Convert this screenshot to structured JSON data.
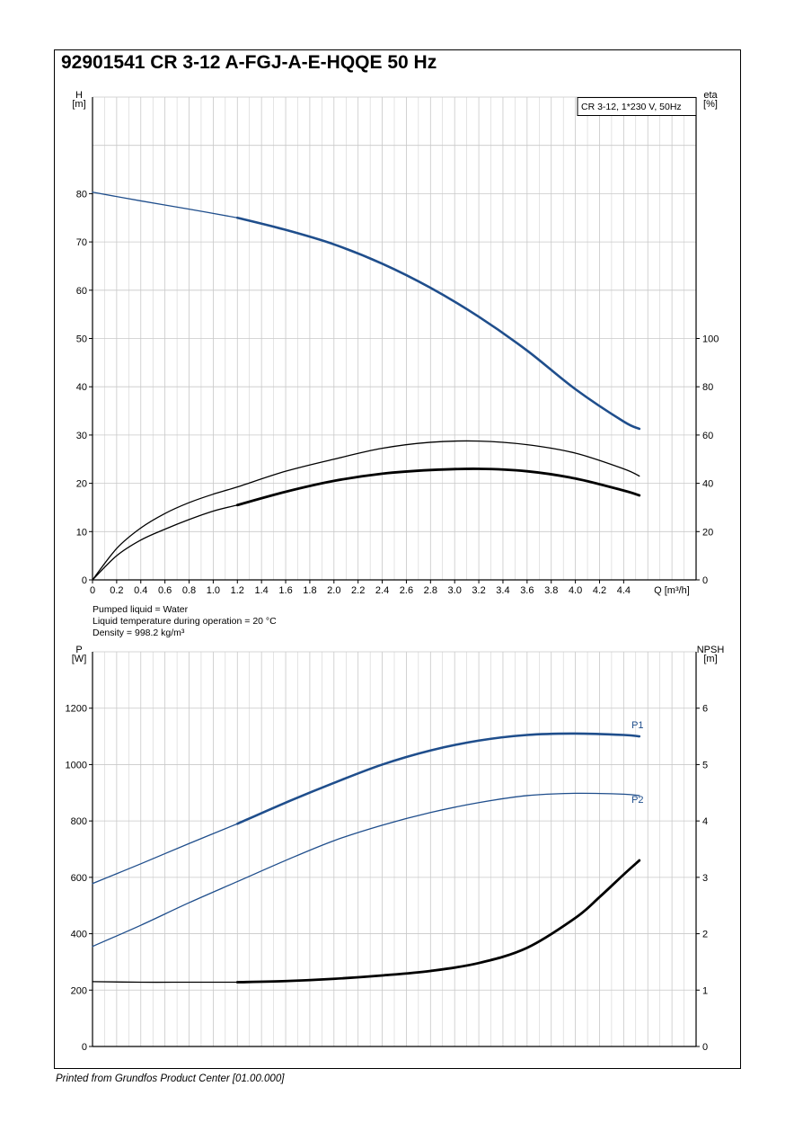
{
  "title": "92901541 CR 3-12 A-FGJ-A-E-HQQE 50 Hz",
  "footer": "Printed from Grundfos Product Center [01.00.000]",
  "colors": {
    "blue": "#1f4e8c",
    "black": "#000000",
    "grid": "#c8c8c8"
  },
  "chart_data": [
    {
      "type": "line",
      "legend_box": "CR 3-12, 1*230 V, 50Hz",
      "x_label": "Q [m³/h]",
      "x_ticks": [
        "0",
        "0.2",
        "0.4",
        "0.6",
        "0.8",
        "1.0",
        "1.2",
        "1.4",
        "1.6",
        "1.8",
        "2.0",
        "2.2",
        "2.4",
        "2.6",
        "2.8",
        "3.0",
        "3.2",
        "3.4",
        "3.6",
        "3.8",
        "4.0",
        "4.2",
        "4.4"
      ],
      "xlim": [
        0,
        5.0
      ],
      "y_label_top": "H",
      "y_label_bottom": "[m]",
      "y_ticks": [
        "0",
        "10",
        "20",
        "30",
        "40",
        "50",
        "60",
        "70",
        "80"
      ],
      "ylim": [
        0,
        100
      ],
      "y2_label_top": "eta",
      "y2_label_bottom": "[%]",
      "y2_ticks": [
        "0",
        "20",
        "40",
        "60",
        "80",
        "100"
      ],
      "y2lim": [
        0,
        200
      ],
      "notes": [
        "Pumped liquid = Water",
        "Liquid temperature during operation = 20 °C",
        "Density = 998.2 kg/m³"
      ],
      "series": [
        {
          "axis": "y",
          "style": "blue",
          "x": [
            0,
            0.4,
            0.8,
            1.2,
            1.6,
            2.0,
            2.4,
            2.8,
            3.2,
            3.6,
            4.0,
            4.4,
            4.53
          ],
          "y": [
            80.3,
            78.5,
            76.8,
            75.0,
            72.5,
            69.5,
            65.5,
            60.5,
            54.5,
            47.5,
            39.5,
            32.8,
            31.3
          ]
        },
        {
          "axis": "y2",
          "style": "black-thin",
          "x": [
            0,
            0.2,
            0.4,
            0.6,
            0.8,
            1.0,
            1.2,
            1.6,
            2.0,
            2.4,
            2.8,
            3.2,
            3.6,
            4.0,
            4.4,
            4.53
          ],
          "y": [
            0,
            13,
            21.5,
            27.5,
            32,
            35.5,
            38.5,
            45,
            50,
            54.5,
            57,
            57.5,
            56,
            52.5,
            46,
            43
          ]
        },
        {
          "axis": "y2",
          "style": "black-thick",
          "x": [
            0,
            0.2,
            0.4,
            0.6,
            0.8,
            1.0,
            1.2,
            1.6,
            2.0,
            2.4,
            2.8,
            3.2,
            3.6,
            4.0,
            4.4,
            4.53
          ],
          "y": [
            0,
            10,
            16.5,
            21,
            25,
            28.5,
            31,
            36.5,
            41,
            44,
            45.5,
            46,
            45,
            42,
            37,
            35
          ]
        }
      ]
    },
    {
      "type": "line",
      "x_label": "",
      "xlim": [
        0,
        5.0
      ],
      "y_label_top": "P",
      "y_label_bottom": "[W]",
      "y_ticks": [
        "0",
        "200",
        "400",
        "600",
        "800",
        "1000",
        "1200"
      ],
      "ylim": [
        0,
        1400
      ],
      "y2_label_top": "NPSH",
      "y2_label_bottom": "[m]",
      "y2_ticks": [
        "0",
        "1",
        "2",
        "3",
        "4",
        "5",
        "6"
      ],
      "y2lim": [
        0,
        7
      ],
      "series": [
        {
          "name": "P1",
          "axis": "y",
          "style": "blue",
          "x": [
            0,
            0.4,
            0.8,
            1.2,
            1.6,
            2.0,
            2.4,
            2.8,
            3.2,
            3.6,
            4.0,
            4.4,
            4.53
          ],
          "y": [
            578,
            648,
            720,
            790,
            865,
            935,
            1000,
            1050,
            1085,
            1105,
            1110,
            1105,
            1100
          ]
        },
        {
          "name": "P2",
          "axis": "y",
          "style": "blue-thin",
          "x": [
            0,
            0.4,
            0.8,
            1.2,
            1.6,
            2.0,
            2.4,
            2.8,
            3.2,
            3.6,
            4.0,
            4.4,
            4.53
          ],
          "y": [
            355,
            430,
            510,
            585,
            660,
            730,
            785,
            830,
            865,
            890,
            898,
            895,
            890
          ]
        },
        {
          "axis": "y2",
          "style": "black-thick",
          "x": [
            0,
            0.4,
            0.8,
            1.2,
            1.6,
            2.0,
            2.4,
            2.8,
            3.2,
            3.6,
            4.0,
            4.2,
            4.4,
            4.53
          ],
          "y": [
            1.15,
            1.14,
            1.14,
            1.14,
            1.16,
            1.2,
            1.26,
            1.34,
            1.48,
            1.75,
            2.28,
            2.65,
            3.05,
            3.3
          ]
        }
      ]
    }
  ]
}
